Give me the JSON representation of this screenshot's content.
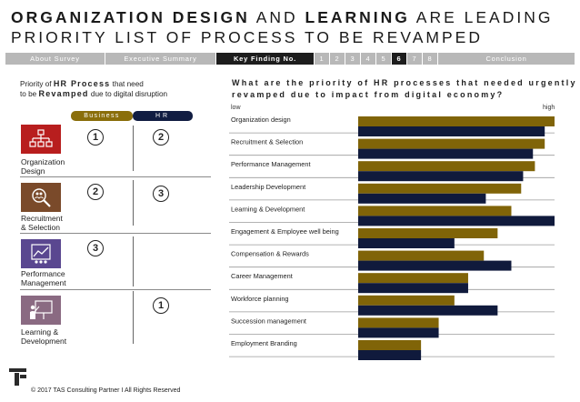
{
  "title": {
    "bold1": "ORGANIZATION DESIGN",
    "mid": " AND ",
    "bold2": "LEARNING",
    "rest1": " ARE LEADING",
    "line2": "PRIORITY LIST OF PROCESS TO BE REVAMPED"
  },
  "nav": {
    "about": "About Survey",
    "executive": "Executive Summary",
    "key": "Key Finding No.",
    "numbers": [
      "1",
      "2",
      "3",
      "4",
      "5",
      "6",
      "7",
      "8"
    ],
    "active_number": "6",
    "conclusion": "Conclusion"
  },
  "left_panel": {
    "caption_prefix": "Priority of ",
    "caption_bold1": "HR Process",
    "caption_mid": " that need",
    "caption_line2_prefix": "to be ",
    "caption_bold2": "Revamped",
    "caption_suffix": " due to digital disruption",
    "col_business": "Business",
    "col_hr": "HR",
    "processes": [
      {
        "label1": "Organization",
        "label2": "Design",
        "business_rank": "1",
        "hr_rank": "2",
        "icon": "org-chart-icon"
      },
      {
        "label1": "Recruitment",
        "label2": "& Selection",
        "business_rank": "2",
        "hr_rank": "3",
        "icon": "magnifier-people-icon"
      },
      {
        "label1": "Performance",
        "label2": "Management",
        "business_rank": "3",
        "hr_rank": "",
        "icon": "performance-chart-icon"
      },
      {
        "label1": "Learning &",
        "label2": "Development",
        "business_rank": "",
        "hr_rank": "1",
        "icon": "presentation-board-icon"
      }
    ]
  },
  "chart_data": {
    "type": "bar",
    "orientation": "horizontal",
    "title": "What are the priority of HR processes that needed urgently revamped due to impact from digital economy?",
    "scale_low": "low",
    "scale_high": "high",
    "xlim": [
      0,
      100
    ],
    "categories": [
      "Organization design",
      "Recruitment & Selection",
      "Performance Management",
      "Leadership Development",
      "Learning & Development",
      "Engagement & Employee well being",
      "Compensation  & Rewards",
      "Career Management",
      "Workforce planning",
      "Succession management",
      "Employment Branding"
    ],
    "series": [
      {
        "name": "Business",
        "color": "#806408",
        "values": [
          100,
          95,
          90,
          83,
          78,
          71,
          64,
          56,
          49,
          41,
          32
        ]
      },
      {
        "name": "HR",
        "color": "#101a3c",
        "values": [
          95,
          89,
          84,
          65,
          100,
          49,
          78,
          56,
          71,
          41,
          32
        ]
      }
    ]
  },
  "footer": {
    "copyright": "© 2017 TAS Consulting Partner  I  All Rights Reserved"
  },
  "colors": {
    "business": "#806408",
    "hr": "#101a3c",
    "icon_red": "#b81e1e",
    "icon_brown": "#7a4a2a",
    "icon_purple": "#5a4790",
    "icon_mauve": "#8a6a82"
  }
}
